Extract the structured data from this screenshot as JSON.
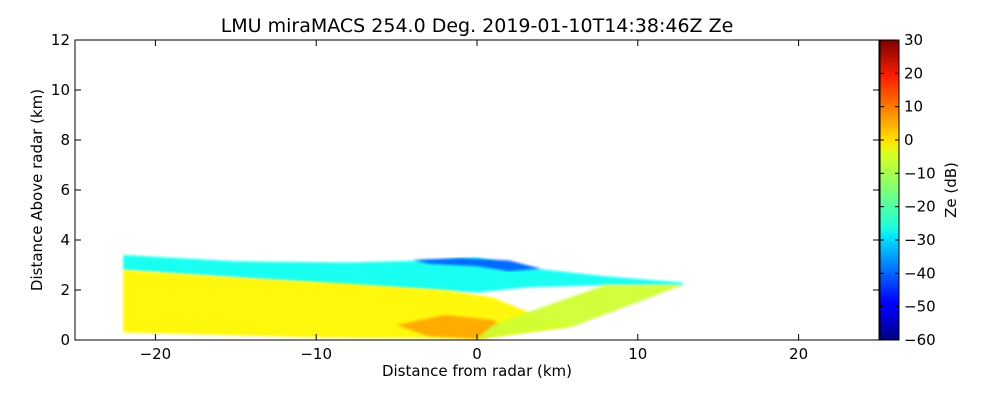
{
  "chart_data": {
    "type": "heatmap",
    "title": "LMU miraMACS 254.0 Deg. 2019-01-10T14:38:46Z  Ze",
    "xlabel": "Distance from radar (km)",
    "ylabel": "Distance Above radar  (km)",
    "xlim": [
      -25,
      25
    ],
    "ylim": [
      0,
      12
    ],
    "xticks": [
      -20,
      -10,
      0,
      10,
      20
    ],
    "xtick_labels": [
      "−20",
      "−10",
      "0",
      "10",
      "20"
    ],
    "yticks": [
      0,
      2,
      4,
      6,
      8,
      10,
      12
    ],
    "ytick_labels": [
      "0",
      "2",
      "4",
      "6",
      "8",
      "10",
      "12"
    ],
    "colorbar": {
      "label": "Ze (dB)",
      "colormap": "jet",
      "range": [
        -60,
        30
      ],
      "ticks": [
        30,
        20,
        10,
        0,
        -10,
        -20,
        -30,
        -40,
        -50,
        -60
      ],
      "tick_labels": [
        "30",
        "20",
        "10",
        "0",
        "−10",
        "−20",
        "−30",
        "−40",
        "−50",
        "−60"
      ]
    },
    "echo_regions": [
      {
        "name": "upper-echo-band",
        "ze_db": -25,
        "polygon": [
          [
            -22,
            3.4
          ],
          [
            -15,
            3.15
          ],
          [
            -8,
            3.1
          ],
          [
            -2,
            3.2
          ],
          [
            0,
            3.3
          ],
          [
            3,
            2.9
          ],
          [
            8,
            2.55
          ],
          [
            12.8,
            2.3
          ],
          [
            12.8,
            2.2
          ],
          [
            8,
            2.2
          ],
          [
            3,
            2.1
          ],
          [
            0,
            1.9
          ],
          [
            -8,
            2.2
          ],
          [
            -15,
            2.5
          ],
          [
            -22,
            2.8
          ]
        ]
      },
      {
        "name": "cloud-top-weak-echo",
        "ze_db": -40,
        "polygon": [
          [
            -4,
            3.2
          ],
          [
            -1,
            3.28
          ],
          [
            2,
            3.18
          ],
          [
            4,
            2.85
          ],
          [
            2,
            2.75
          ],
          [
            0,
            2.95
          ],
          [
            -3,
            3.05
          ]
        ]
      },
      {
        "name": "main-precip-body",
        "ze_db": -3,
        "polygon": [
          [
            -22,
            2.8
          ],
          [
            -15,
            2.5
          ],
          [
            -8,
            2.25
          ],
          [
            -2,
            2.0
          ],
          [
            1,
            1.7
          ],
          [
            4,
            0.9
          ],
          [
            6,
            0.55
          ],
          [
            0,
            0.05
          ],
          [
            -10,
            0.1
          ],
          [
            -22,
            0.3
          ]
        ]
      },
      {
        "name": "enhanced-core-near-radar",
        "ze_db": 4,
        "polygon": [
          [
            -5,
            0.6
          ],
          [
            -2,
            1.0
          ],
          [
            1,
            0.8
          ],
          [
            2,
            0.3
          ],
          [
            0,
            0.05
          ],
          [
            -3,
            0.15
          ]
        ]
      },
      {
        "name": "low-beam-wedge",
        "ze_db": -8,
        "polygon": [
          [
            0,
            0.05
          ],
          [
            6,
            0.55
          ],
          [
            12.8,
            2.2
          ],
          [
            8,
            2.2
          ],
          [
            4,
            1.3
          ],
          [
            1,
            0.6
          ]
        ]
      }
    ]
  }
}
